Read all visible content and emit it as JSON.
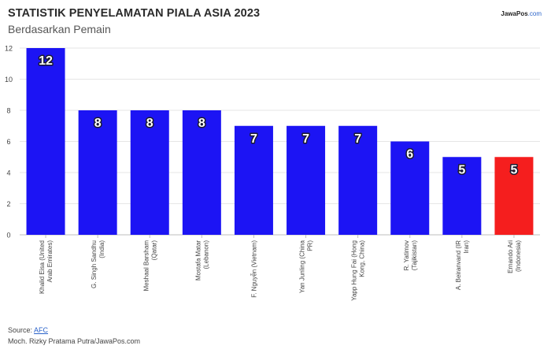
{
  "brand": {
    "name": "JawaPos",
    "domain": ".com"
  },
  "chart_data": {
    "type": "bar",
    "title": "STATISTIK PENYELAMATAN PIALA ASIA 2023",
    "subtitle": "Berdasarkan Pemain",
    "categories": [
      "Khalid Eisa (United Arab Emirates)",
      "G. Singh Sandhu (India)",
      "Meshaal Barsham (Qatar)",
      "Mostafa Matar (Lebanon)",
      "F. Nguyễn (Vietnam)",
      "Yan Junling (China PR)",
      "Yapp Hung Fai (Hong Kong, China)",
      "R. Yatimov (Tajikistan)",
      "A. Beiranvand (IR Iran)",
      "Ernando Ari (Indonesia)"
    ],
    "values": [
      12,
      8,
      8,
      8,
      7,
      7,
      7,
      6,
      5,
      5
    ],
    "ylim": [
      0,
      12
    ],
    "yticks": [
      "0",
      "2",
      "4",
      "6",
      "8",
      "10",
      "12"
    ],
    "grid": true,
    "colors": {
      "default": "#1c14f4",
      "highlight": "#f51e1e",
      "highlight_index": 9
    }
  },
  "footer": {
    "source_label": "Source: ",
    "source_link": "AFC",
    "credit": "Moch. Rizky Pratama Putra/JawaPos.com"
  }
}
